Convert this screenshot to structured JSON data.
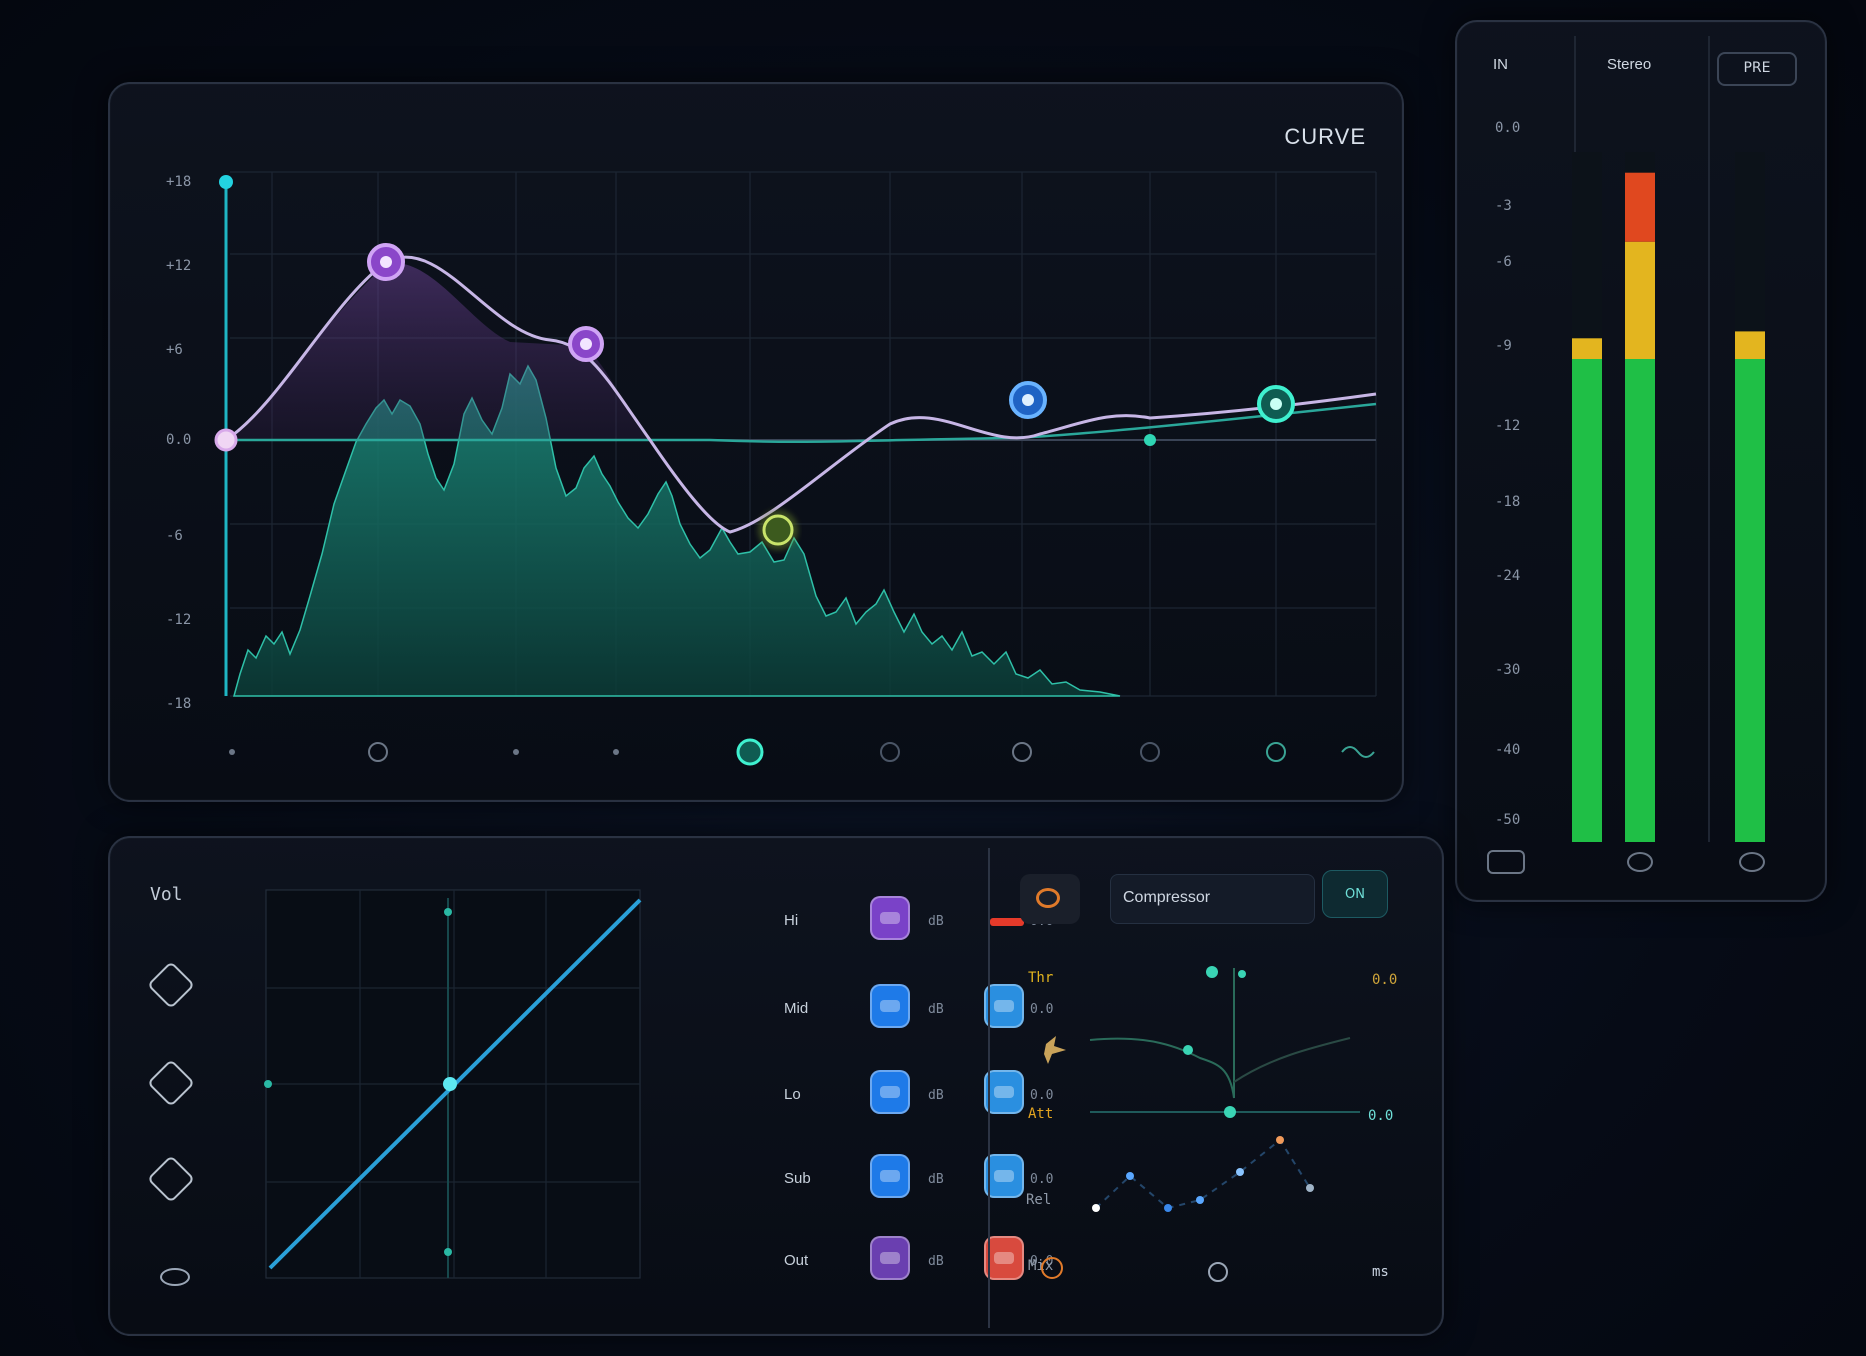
{
  "eq": {
    "mode_label": "CURVE",
    "y_ticks": [
      "+18",
      "+12",
      "+6",
      "0.0",
      "-6",
      "-12",
      "-18"
    ],
    "x_icon_names": [
      "dot-icon",
      "node-icon",
      "dot-icon",
      "dot-icon",
      "active-node-icon",
      "node-icon",
      "node-icon",
      "node-icon",
      "node-icon",
      "wave-icon"
    ]
  },
  "meter": {
    "head_left": "IN",
    "head_mid": "Stereo",
    "preset": "PRE",
    "scale": [
      "0.0",
      "-3",
      "-6",
      "-9",
      "-12",
      "-18",
      "-24",
      "-30",
      "-40",
      "-50"
    ],
    "fill_levels": {
      "L": 0.73,
      "R": 0.97,
      "OUT": 0.74
    },
    "colors": {
      "green": "#1fbf46",
      "yellow": "#e3b51f",
      "red": "#e0481f"
    }
  },
  "dynamics": {
    "side_label": "Vol",
    "bands": [
      {
        "label": "Hi",
        "val_a": "dB",
        "val_b": "0.0"
      },
      {
        "label": "Mid",
        "val_a": "dB",
        "val_b": "0.0"
      },
      {
        "label": "Lo",
        "val_a": "dB",
        "val_b": "0.0"
      },
      {
        "label": "Sub",
        "val_a": "dB",
        "val_b": "0.0"
      },
      {
        "label": "Out",
        "val_a": "dB",
        "val_b": "0.0"
      }
    ]
  },
  "mod": {
    "search_text": "Compressor",
    "teal_button": "ON",
    "left_labels": [
      "Thr",
      "Att",
      "Rel",
      "Mix"
    ],
    "right_labels": [
      "0.0",
      "0.0"
    ],
    "footer_right": "ms"
  }
}
